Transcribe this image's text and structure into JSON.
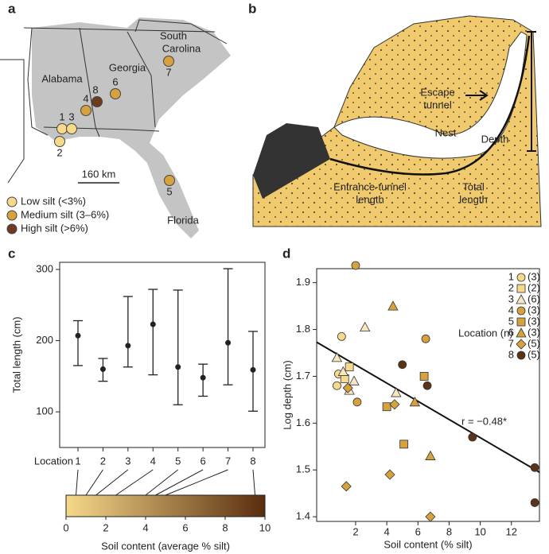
{
  "panel_labels": [
    "a",
    "b",
    "c",
    "d"
  ],
  "map": {
    "region_labels": {
      "south": "South",
      "carolina": "Carolina",
      "georgia": "Georgia",
      "alabama": "Alabama",
      "florida": "Florida"
    },
    "scale": "160 km",
    "sites": [
      {
        "label": "1",
        "color": "#f6d98a"
      },
      {
        "label": "2",
        "color": "#f6d98a"
      },
      {
        "label": "3",
        "color": "#f6d98a"
      },
      {
        "label": "4",
        "color": "#d6a23e"
      },
      {
        "label": "5",
        "color": "#d6a23e"
      },
      {
        "label": "6",
        "color": "#d6a23e"
      },
      {
        "label": "7",
        "color": "#d6a23e"
      },
      {
        "label": "8",
        "color": "#6b3a1f"
      }
    ],
    "legend": [
      {
        "label": "Low silt (<3%)",
        "color": "#f6d98a"
      },
      {
        "label": "Medium silt (3–6%)",
        "color": "#d6a23e"
      },
      {
        "label": "High silt (>6%)",
        "color": "#6b3a1f"
      }
    ]
  },
  "diagram": {
    "escape": [
      "Escape",
      "tunnel"
    ],
    "nest": "Nest",
    "depth": "Depth",
    "entrance": [
      "Entrance-tunnel",
      "length"
    ],
    "total": [
      "Total",
      "length"
    ]
  },
  "chart_data": [
    {
      "type": "errorbar",
      "y_label": "Total length (cm)",
      "x_label": "Location",
      "categories": [
        "1",
        "2",
        "3",
        "4",
        "5",
        "6",
        "7",
        "8"
      ],
      "values": [
        207,
        160,
        193,
        223,
        163,
        148,
        197,
        159
      ],
      "lower": [
        165,
        143,
        163,
        152,
        110,
        122,
        138,
        101
      ],
      "upper": [
        228,
        175,
        262,
        272,
        271,
        167,
        301,
        213
      ],
      "color": "#222222",
      "ylim": [
        50,
        310
      ],
      "yticks": [
        100,
        200,
        300
      ],
      "colorbar": {
        "label": "Soil content (average % silt)",
        "xlim": [
          0,
          10
        ],
        "xticks": [
          0,
          2,
          4,
          6,
          8,
          10
        ],
        "values": [
          0.5,
          1,
          1.5,
          2.5,
          4,
          4.5,
          5,
          9.5
        ],
        "colors": [
          "#f6d98a",
          "#5a2d0f"
        ]
      }
    },
    {
      "type": "scatter",
      "x_label": "Soil content (% silt)",
      "y_label": "Log depth (cm)",
      "xlim": [
        -0.5,
        13.8
      ],
      "ylim": [
        1.39,
        1.93
      ],
      "xticks": [
        2,
        4,
        6,
        8,
        10,
        12
      ],
      "yticks": [
        1.4,
        1.5,
        1.6,
        1.7,
        1.8,
        1.9
      ],
      "legend_title": "Location (n)",
      "annotation": "r = −0.48*",
      "fit": {
        "x": [
          -0.5,
          13.8
        ],
        "y": [
          1.773,
          1.495
        ]
      },
      "series": [
        {
          "name": "1",
          "n_label": "(3)",
          "marker": "circle",
          "color": "#f6d98a",
          "x": [
            1.1,
            0.9,
            0.8
          ],
          "y": [
            1.785,
            1.705,
            1.68
          ]
        },
        {
          "name": "2",
          "n_label": "(2)",
          "marker": "square",
          "color": "#f6d98a",
          "x": [
            1.6,
            1.3
          ],
          "y": [
            1.72,
            1.695
          ]
        },
        {
          "name": "3",
          "n_label": "(6)",
          "marker": "triangle",
          "color": "#f6e7c0",
          "x": [
            2.6,
            0.8,
            1.2,
            1.9,
            1.6,
            4.6
          ],
          "y": [
            1.805,
            1.74,
            1.71,
            1.69,
            1.67,
            1.665
          ]
        },
        {
          "name": "4",
          "n_label": "(3)",
          "marker": "circle",
          "color": "#d6a23e",
          "x": [
            2.0,
            6.5,
            2.1
          ],
          "y": [
            1.94,
            1.78,
            1.645
          ]
        },
        {
          "name": "5",
          "n_label": "(3)",
          "marker": "square",
          "color": "#d6a23e",
          "x": [
            6.4,
            4.0,
            5.1
          ],
          "y": [
            1.7,
            1.635,
            1.555
          ]
        },
        {
          "name": "6",
          "n_label": "(3)",
          "marker": "triangle",
          "color": "#d6a23e",
          "x": [
            4.4,
            5.8,
            6.8
          ],
          "y": [
            1.85,
            1.645,
            1.53
          ]
        },
        {
          "name": "7",
          "n_label": "(5)",
          "marker": "diamond",
          "color": "#d6a23e",
          "x": [
            1.5,
            4.5,
            4.2,
            1.4,
            6.8
          ],
          "y": [
            1.675,
            1.64,
            1.49,
            1.465,
            1.4
          ]
        },
        {
          "name": "8",
          "n_label": "(5)",
          "marker": "circle",
          "color": "#5c3317",
          "x": [
            5.0,
            6.6,
            9.5,
            13.5,
            13.5
          ],
          "y": [
            1.725,
            1.68,
            1.57,
            1.505,
            1.43
          ]
        }
      ]
    }
  ]
}
